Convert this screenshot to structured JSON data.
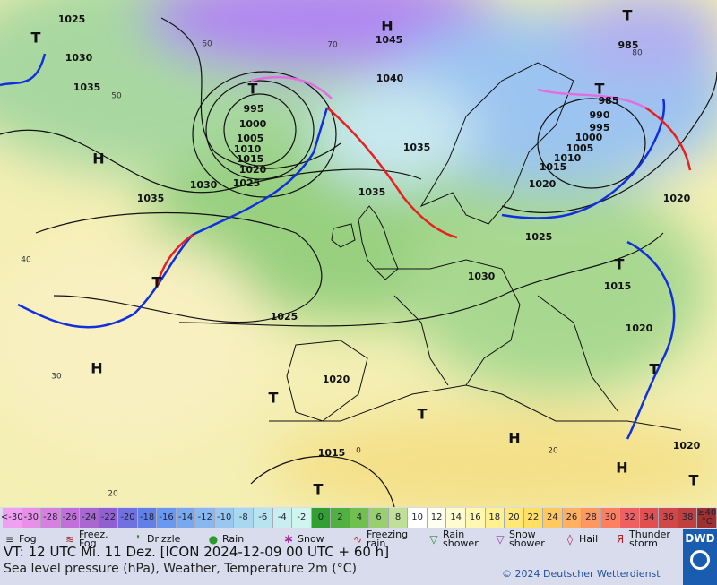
{
  "map": {
    "isobar_labels": [
      "1025",
      "1030",
      "1035",
      "995",
      "1000",
      "1005",
      "1010",
      "1015",
      "1020",
      "1025",
      "1030",
      "1035",
      "1045",
      "1040",
      "1035",
      "1035",
      "1030",
      "1025",
      "1020",
      "1015",
      "985",
      "985",
      "990",
      "995",
      "1000",
      "1005",
      "1010",
      "1015",
      "1020",
      "1025",
      "1020",
      "1015",
      "1020",
      "1020"
    ],
    "isotherm_labels": [
      "60",
      "70",
      "50",
      "40",
      "30",
      "20",
      "0",
      "20",
      "80"
    ],
    "pressure_centers": [
      "H",
      "H",
      "H",
      "H",
      "H",
      "T",
      "T",
      "T",
      "T",
      "T",
      "T",
      "T",
      "T",
      "T",
      "T",
      "T"
    ]
  },
  "temperature_scale": {
    "cells": [
      {
        "label": "<-30",
        "color": "#f0a0f0"
      },
      {
        "label": "-30",
        "color": "#e890e8"
      },
      {
        "label": "-28",
        "color": "#d880e0"
      },
      {
        "label": "-26",
        "color": "#c070d8"
      },
      {
        "label": "-24",
        "color": "#a868d0"
      },
      {
        "label": "-22",
        "color": "#9060d0"
      },
      {
        "label": "-20",
        "color": "#7070e0"
      },
      {
        "label": "-18",
        "color": "#6080e8"
      },
      {
        "label": "-16",
        "color": "#6898f0"
      },
      {
        "label": "-14",
        "color": "#78a8f0"
      },
      {
        "label": "-12",
        "color": "#88b8f0"
      },
      {
        "label": "-10",
        "color": "#98c8f0"
      },
      {
        "label": "-8",
        "color": "#a8d8f0"
      },
      {
        "label": "-6",
        "color": "#b8e4f0"
      },
      {
        "label": "-4",
        "color": "#c8eef0"
      },
      {
        "label": "-2",
        "color": "#d0f4f0"
      },
      {
        "label": "0",
        "color": "#30a030"
      },
      {
        "label": "2",
        "color": "#50b040"
      },
      {
        "label": "4",
        "color": "#70c050"
      },
      {
        "label": "6",
        "color": "#98d070"
      },
      {
        "label": "8",
        "color": "#c0e098"
      },
      {
        "label": "10",
        "color": "#ffffff"
      },
      {
        "label": "12",
        "color": "#fffff0"
      },
      {
        "label": "14",
        "color": "#fffcd0"
      },
      {
        "label": "16",
        "color": "#fff8b0"
      },
      {
        "label": "18",
        "color": "#fff090"
      },
      {
        "label": "20",
        "color": "#ffe878"
      },
      {
        "label": "22",
        "color": "#ffe060"
      },
      {
        "label": "24",
        "color": "#ffc860"
      },
      {
        "label": "26",
        "color": "#ffb060"
      },
      {
        "label": "28",
        "color": "#ff9860"
      },
      {
        "label": "30",
        "color": "#ff8060"
      },
      {
        "label": "32",
        "color": "#f06060"
      },
      {
        "label": "34",
        "color": "#e05050"
      },
      {
        "label": "36",
        "color": "#d04848"
      },
      {
        "label": "38",
        "color": "#c04040"
      },
      {
        "label": "≥40 °C",
        "color": "#a03030"
      }
    ]
  },
  "legend": [
    "Fog",
    "Freez. Fog",
    "Drizzle",
    "Rain",
    "Snow",
    "Freezing rain",
    "Rain shower",
    "Snow shower",
    "Hail",
    "Thunder storm"
  ],
  "footer": {
    "valid_time": "VT: 12 UTC Mi.  11 Dez. [ICON 2024-12-09  00 UTC + 60 h]",
    "description": "Sea level pressure (hPa), Weather, Temperature 2m (°C)",
    "copyright": "© 2024 Deutscher Wetterdienst",
    "logo": "DWD"
  }
}
